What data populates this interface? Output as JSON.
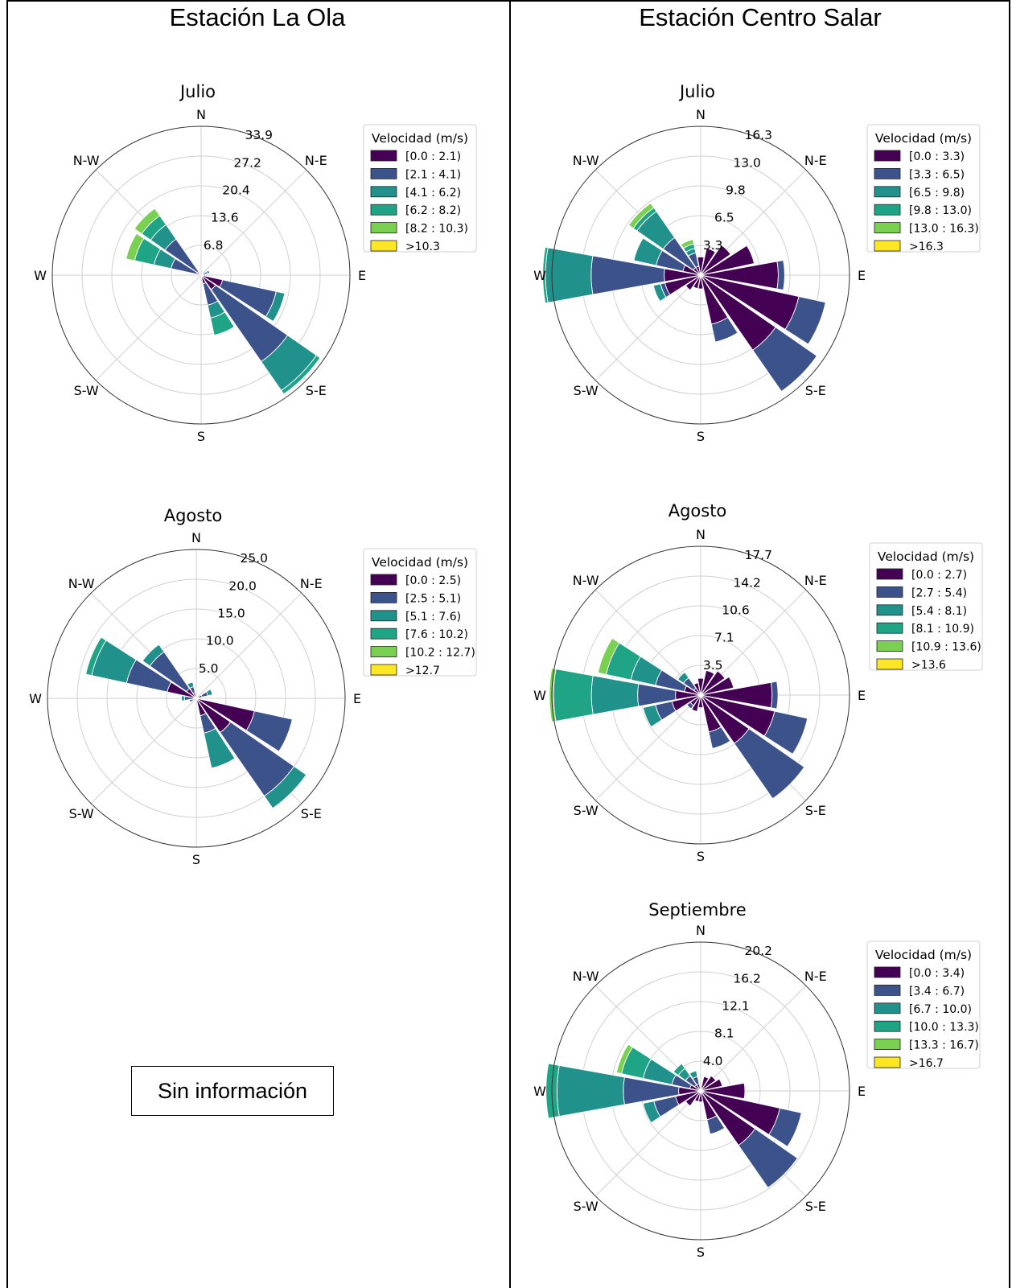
{
  "columns": {
    "left_title": "Estación La Ola",
    "right_title": "Estación Centro Salar"
  },
  "no_info_label": "Sin información",
  "legend_title": "Velocidad (m/s)",
  "directions": [
    "N",
    "N-E",
    "E",
    "S-E",
    "S",
    "S-W",
    "W",
    "N-W"
  ],
  "palette": [
    "#440154",
    "#3b528b",
    "#21918c",
    "#20a486",
    "#7ad151",
    "#fde725"
  ],
  "chart_data": [
    {
      "type": "windrose",
      "station": "Estación La Ola",
      "title": "Julio",
      "radial_ticks": [
        "6.8",
        "13.6",
        "20.4",
        "27.2",
        "33.9"
      ],
      "rmax": 33.9,
      "bins": [
        "[0.0 : 2.1)",
        "[2.1 : 4.1)",
        "[4.1 : 6.2)",
        "[6.2 : 8.2)",
        "[8.2 : 10.3)",
        ">10.3"
      ],
      "sectors": [
        {
          "dir": 67.5,
          "stack": [
            0.5,
            1.0,
            0.5
          ]
        },
        {
          "dir": 90,
          "stack": [
            0.5,
            0.5
          ]
        },
        {
          "dir": 112.5,
          "stack": [
            5,
            12.5,
            2
          ]
        },
        {
          "dir": 135,
          "stack": [
            4,
            20,
            8,
            1
          ]
        },
        {
          "dir": 157.5,
          "stack": [
            2,
            5,
            3,
            4
          ]
        },
        {
          "dir": 292.5,
          "stack": [
            1,
            6,
            4,
            4.5,
            2
          ]
        },
        {
          "dir": 315,
          "stack": [
            1,
            9,
            4,
            2.5,
            2
          ]
        }
      ]
    },
    {
      "type": "windrose",
      "station": "Estación La Ola",
      "title": "Agosto",
      "radial_ticks": [
        "5.0",
        "10.0",
        "15.0",
        "20.0",
        "25.0"
      ],
      "rmax": 25.0,
      "bins": [
        "[0.0 : 2.5)",
        "[2.5 : 5.1)",
        "[5.1 : 7.6)",
        "[7.6 : 10.2)",
        "[10.2 : 12.7)",
        ">12.7"
      ],
      "sectors": [
        {
          "dir": 67.5,
          "stack": [
            1,
            1,
            0.8
          ]
        },
        {
          "dir": 112.5,
          "stack": [
            10,
            6.5
          ]
        },
        {
          "dir": 135,
          "stack": [
            7,
            13,
            2.5
          ]
        },
        {
          "dir": 157.5,
          "stack": [
            3,
            3,
            6
          ]
        },
        {
          "dir": 247.5,
          "stack": [
            0.6,
            0.6
          ]
        },
        {
          "dir": 270,
          "stack": [
            0.5,
            1.5,
            0.5
          ]
        },
        {
          "dir": 292.5,
          "stack": [
            5,
            7,
            6,
            1
          ]
        },
        {
          "dir": 315,
          "stack": [
            2,
            7.5,
            1.5
          ]
        },
        {
          "dir": 337.5,
          "stack": [
            1,
            1,
            0.8
          ]
        }
      ]
    },
    {
      "type": "windrose",
      "station": "Estación Centro Salar",
      "title": "Julio",
      "radial_ticks": [
        "3.3",
        "6.5",
        "9.8",
        "13.0",
        "16.3"
      ],
      "rmax": 16.3,
      "bins": [
        "[0.0 : 3.3)",
        "[3.3 : 6.5)",
        "[6.5 : 9.8)",
        "[9.8 : 13.0)",
        "[13.0 : 16.3)",
        ">16.3"
      ],
      "sectors": [
        {
          "dir": 0,
          "stack": [
            2
          ]
        },
        {
          "dir": 22.5,
          "stack": [
            3
          ]
        },
        {
          "dir": 45,
          "stack": [
            4
          ]
        },
        {
          "dir": 67.5,
          "stack": [
            6
          ]
        },
        {
          "dir": 90,
          "stack": [
            8.5,
            0.7
          ]
        },
        {
          "dir": 112.5,
          "stack": [
            11,
            3
          ]
        },
        {
          "dir": 135,
          "stack": [
            10,
            5.5
          ]
        },
        {
          "dir": 157.5,
          "stack": [
            5.5,
            2
          ]
        },
        {
          "dir": 180,
          "stack": [
            1.5
          ]
        },
        {
          "dir": 202.5,
          "stack": [
            1.5
          ]
        },
        {
          "dir": 225,
          "stack": [
            2
          ]
        },
        {
          "dir": 247.5,
          "stack": [
            4,
            0.5,
            0.8
          ]
        },
        {
          "dir": 270,
          "stack": [
            4,
            8,
            5,
            0.3
          ]
        },
        {
          "dir": 292.5,
          "stack": [
            2,
            3,
            2.5
          ]
        },
        {
          "dir": 315,
          "stack": [
            1,
            4,
            3.5,
            0.5,
            0.6
          ]
        },
        {
          "dir": 337.5,
          "stack": [
            1,
            1.5,
            0.5,
            0.5,
            0.5
          ]
        }
      ]
    },
    {
      "type": "windrose",
      "station": "Estación Centro Salar",
      "title": "Agosto",
      "radial_ticks": [
        "3.5",
        "7.1",
        "10.6",
        "14.2",
        "17.7"
      ],
      "rmax": 17.7,
      "bins": [
        "[0.0 : 2.7)",
        "[2.7 : 5.4)",
        "[5.4 : 8.1)",
        "[8.1 : 10.9)",
        "[10.9 : 13.6)",
        ">13.6"
      ],
      "sectors": [
        {
          "dir": 0,
          "stack": [
            2
          ]
        },
        {
          "dir": 22.5,
          "stack": [
            3
          ]
        },
        {
          "dir": 45,
          "stack": [
            3.5
          ]
        },
        {
          "dir": 67.5,
          "stack": [
            4
          ]
        },
        {
          "dir": 90,
          "stack": [
            8.5,
            0.7
          ]
        },
        {
          "dir": 112.5,
          "stack": [
            9,
            4
          ]
        },
        {
          "dir": 135,
          "stack": [
            7,
            8
          ]
        },
        {
          "dir": 157.5,
          "stack": [
            4.5,
            2
          ]
        },
        {
          "dir": 180,
          "stack": [
            1.5
          ]
        },
        {
          "dir": 202.5,
          "stack": [
            2
          ]
        },
        {
          "dir": 225,
          "stack": [
            1.5,
            0.5
          ]
        },
        {
          "dir": 247.5,
          "stack": [
            3.5,
            2,
            1.5
          ]
        },
        {
          "dir": 270,
          "stack": [
            3,
            4.5,
            5.5,
            4.5,
            0.5
          ]
        },
        {
          "dir": 292.5,
          "stack": [
            2,
            3.5,
            3,
            3,
            1
          ]
        },
        {
          "dir": 315,
          "stack": [
            1,
            1.5,
            0.8
          ]
        },
        {
          "dir": 337.5,
          "stack": [
            1.5
          ]
        }
      ]
    },
    {
      "type": "windrose",
      "station": "Estación Centro Salar",
      "title": "Septiembre",
      "radial_ticks": [
        "4.0",
        "8.1",
        "12.1",
        "16.2",
        "20.2"
      ],
      "rmax": 20.2,
      "bins": [
        "[0.0 : 3.4)",
        "[3.4 : 6.7)",
        "[6.7 : 10.0)",
        "[10.0 : 13.3)",
        "[13.3 : 16.7)",
        ">16.7"
      ],
      "sectors": [
        {
          "dir": 22.5,
          "stack": [
            2
          ]
        },
        {
          "dir": 45,
          "stack": [
            2.5
          ]
        },
        {
          "dir": 67.5,
          "stack": [
            3
          ]
        },
        {
          "dir": 90,
          "stack": [
            6
          ]
        },
        {
          "dir": 112.5,
          "stack": [
            11,
            3
          ]
        },
        {
          "dir": 135,
          "stack": [
            9,
            7
          ]
        },
        {
          "dir": 157.5,
          "stack": [
            4,
            2
          ]
        },
        {
          "dir": 180,
          "stack": [
            1.5
          ]
        },
        {
          "dir": 202.5,
          "stack": [
            1.5
          ]
        },
        {
          "dir": 225,
          "stack": [
            2.5
          ]
        },
        {
          "dir": 247.5,
          "stack": [
            3.5,
            3,
            1.5
          ]
        },
        {
          "dir": 270,
          "stack": [
            3,
            7.5,
            9,
            1.5
          ]
        },
        {
          "dir": 292.5,
          "stack": [
            1.5,
            2.5,
            4,
            3,
            0.7
          ]
        },
        {
          "dir": 315,
          "stack": [
            1,
            1.5,
            1.2,
            0.8
          ]
        },
        {
          "dir": 337.5,
          "stack": [
            1,
            1,
            0.8
          ]
        }
      ]
    }
  ]
}
